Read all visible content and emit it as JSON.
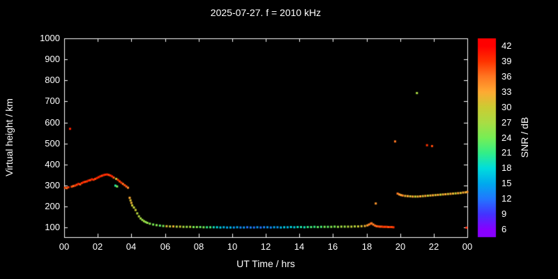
{
  "header": {
    "title": "2025-07-27. f = 2010 kHz"
  },
  "chart_data": {
    "type": "scatter",
    "title": "2025-07-27. f = 2010 kHz",
    "xlabel": "UT Time / hrs",
    "ylabel": "Virtual height / km",
    "colorbar_label": "SNR / dB",
    "background": "#000000",
    "axis_color": "#ffffff",
    "xlim": [
      0,
      24
    ],
    "ylim": [
      55,
      1000
    ],
    "grid": false,
    "x_ticks": [
      {
        "v": 0,
        "label": "00"
      },
      {
        "v": 2,
        "label": "02"
      },
      {
        "v": 4,
        "label": "04"
      },
      {
        "v": 6,
        "label": "06"
      },
      {
        "v": 8,
        "label": "08"
      },
      {
        "v": 10,
        "label": "10"
      },
      {
        "v": 12,
        "label": "12"
      },
      {
        "v": 14,
        "label": "14"
      },
      {
        "v": 16,
        "label": "16"
      },
      {
        "v": 18,
        "label": "18"
      },
      {
        "v": 20,
        "label": "20"
      },
      {
        "v": 22,
        "label": "22"
      },
      {
        "v": 24,
        "label": "00"
      }
    ],
    "y_ticks": [
      {
        "v": 100,
        "label": "100"
      },
      {
        "v": 200,
        "label": "200"
      },
      {
        "v": 300,
        "label": "300"
      },
      {
        "v": 400,
        "label": "400"
      },
      {
        "v": 500,
        "label": "500"
      },
      {
        "v": 600,
        "label": "600"
      },
      {
        "v": 700,
        "label": "700"
      },
      {
        "v": 800,
        "label": "800"
      },
      {
        "v": 900,
        "label": "900"
      },
      {
        "v": 1000,
        "label": "1000"
      }
    ],
    "colorbar": {
      "min": 4.5,
      "max": 43.5,
      "ticks": [
        6,
        9,
        12,
        15,
        18,
        21,
        24,
        27,
        30,
        33,
        36,
        39,
        42
      ],
      "stops": [
        [
          6,
          "#8800ff"
        ],
        [
          9,
          "#4433ff"
        ],
        [
          12,
          "#2277ff"
        ],
        [
          15,
          "#00aaee"
        ],
        [
          18,
          "#00dddd"
        ],
        [
          21,
          "#33ee88"
        ],
        [
          24,
          "#77ee55"
        ],
        [
          27,
          "#aadd44"
        ],
        [
          30,
          "#cccc33"
        ],
        [
          33,
          "#ffaa33"
        ],
        [
          36,
          "#ff7722"
        ],
        [
          39,
          "#ff3300"
        ],
        [
          42,
          "#ff0000"
        ]
      ]
    },
    "points": [
      [
        0.05,
        290,
        38
      ],
      [
        0.15,
        288,
        36
      ],
      [
        0.25,
        292,
        39
      ],
      [
        0.35,
        570,
        40
      ],
      [
        0.45,
        295,
        38
      ],
      [
        0.55,
        298,
        36
      ],
      [
        0.65,
        300,
        39
      ],
      [
        0.75,
        304,
        38
      ],
      [
        0.85,
        308,
        40
      ],
      [
        0.95,
        306,
        37
      ],
      [
        1.05,
        312,
        39
      ],
      [
        1.15,
        316,
        40
      ],
      [
        1.25,
        318,
        38
      ],
      [
        1.35,
        320,
        39
      ],
      [
        1.45,
        324,
        40
      ],
      [
        1.55,
        326,
        38
      ],
      [
        1.65,
        330,
        40
      ],
      [
        1.75,
        328,
        39
      ],
      [
        1.85,
        332,
        38
      ],
      [
        1.95,
        336,
        40
      ],
      [
        2.05,
        340,
        39
      ],
      [
        2.15,
        344,
        40
      ],
      [
        2.25,
        347,
        38
      ],
      [
        2.35,
        350,
        40
      ],
      [
        2.45,
        352,
        39
      ],
      [
        2.55,
        353,
        40
      ],
      [
        2.65,
        351,
        38
      ],
      [
        2.75,
        348,
        39
      ],
      [
        2.85,
        344,
        40
      ],
      [
        2.95,
        338,
        37
      ],
      [
        3.05,
        300,
        20
      ],
      [
        3.1,
        332,
        30
      ],
      [
        3.15,
        296,
        24
      ],
      [
        3.2,
        327,
        39
      ],
      [
        3.3,
        320,
        38
      ],
      [
        3.4,
        314,
        39
      ],
      [
        3.5,
        308,
        36
      ],
      [
        3.6,
        302,
        38
      ],
      [
        3.7,
        296,
        37
      ],
      [
        3.8,
        290,
        35
      ],
      [
        3.9,
        242,
        33
      ],
      [
        3.95,
        230,
        31
      ],
      [
        4.0,
        218,
        32
      ],
      [
        4.05,
        206,
        30
      ],
      [
        4.15,
        196,
        29
      ],
      [
        4.25,
        184,
        30
      ],
      [
        4.35,
        168,
        28
      ],
      [
        4.45,
        154,
        28
      ],
      [
        4.55,
        144,
        27
      ],
      [
        4.65,
        137,
        26
      ],
      [
        4.75,
        131,
        27
      ],
      [
        4.85,
        127,
        25
      ],
      [
        4.95,
        123,
        26
      ],
      [
        5.1,
        119,
        25
      ],
      [
        5.3,
        115,
        24
      ],
      [
        5.5,
        112,
        25
      ],
      [
        5.7,
        110,
        23
      ],
      [
        5.9,
        108,
        24
      ],
      [
        6.1,
        107,
        31
      ],
      [
        6.3,
        106,
        29
      ],
      [
        6.5,
        106,
        32
      ],
      [
        6.7,
        105,
        28
      ],
      [
        6.9,
        105,
        30
      ],
      [
        7.1,
        104,
        27
      ],
      [
        7.3,
        104,
        26
      ],
      [
        7.5,
        104,
        28
      ],
      [
        7.7,
        103,
        24
      ],
      [
        7.9,
        103,
        25
      ],
      [
        8.1,
        103,
        23
      ],
      [
        8.3,
        102,
        24
      ],
      [
        8.5,
        102,
        21
      ],
      [
        8.7,
        102,
        22
      ],
      [
        8.9,
        102,
        19
      ],
      [
        9.1,
        102,
        18
      ],
      [
        9.3,
        101,
        17
      ],
      [
        9.5,
        102,
        16
      ],
      [
        9.7,
        101,
        15
      ],
      [
        9.9,
        101,
        16
      ],
      [
        10.1,
        101,
        14
      ],
      [
        10.3,
        102,
        15
      ],
      [
        10.5,
        101,
        13
      ],
      [
        10.7,
        101,
        14
      ],
      [
        10.9,
        102,
        12
      ],
      [
        11.1,
        101,
        13
      ],
      [
        11.3,
        101,
        12
      ],
      [
        11.5,
        102,
        14
      ],
      [
        11.7,
        101,
        12
      ],
      [
        11.9,
        102,
        13
      ],
      [
        12.1,
        102,
        14
      ],
      [
        12.3,
        101,
        13
      ],
      [
        12.5,
        102,
        15
      ],
      [
        12.7,
        102,
        14
      ],
      [
        12.9,
        101,
        16
      ],
      [
        13.1,
        102,
        17
      ],
      [
        13.3,
        102,
        16
      ],
      [
        13.5,
        103,
        18
      ],
      [
        13.7,
        102,
        17
      ],
      [
        13.9,
        103,
        19
      ],
      [
        14.1,
        103,
        20
      ],
      [
        14.3,
        102,
        19
      ],
      [
        14.5,
        103,
        21
      ],
      [
        14.7,
        103,
        22
      ],
      [
        14.9,
        104,
        21
      ],
      [
        15.1,
        103,
        23
      ],
      [
        15.3,
        104,
        22
      ],
      [
        15.5,
        104,
        24
      ],
      [
        15.7,
        104,
        23
      ],
      [
        15.9,
        104,
        25
      ],
      [
        16.1,
        105,
        24
      ],
      [
        16.3,
        104,
        26
      ],
      [
        16.5,
        105,
        27
      ],
      [
        16.7,
        105,
        26
      ],
      [
        16.9,
        105,
        28
      ],
      [
        17.1,
        105,
        29
      ],
      [
        17.3,
        106,
        28
      ],
      [
        17.5,
        106,
        30
      ],
      [
        17.7,
        107,
        31
      ],
      [
        17.9,
        108,
        32
      ],
      [
        18.05,
        111,
        34
      ],
      [
        18.15,
        115,
        35
      ],
      [
        18.25,
        119,
        37
      ],
      [
        18.3,
        121,
        36
      ],
      [
        18.4,
        115,
        35
      ],
      [
        18.5,
        110,
        37
      ],
      [
        18.55,
        215,
        34
      ],
      [
        18.6,
        107,
        36
      ],
      [
        18.7,
        106,
        38
      ],
      [
        18.8,
        105,
        37
      ],
      [
        18.9,
        105,
        38
      ],
      [
        19.0,
        104,
        39
      ],
      [
        19.1,
        104,
        38
      ],
      [
        19.2,
        104,
        39
      ],
      [
        19.3,
        103,
        37
      ],
      [
        19.4,
        103,
        39
      ],
      [
        19.5,
        103,
        38
      ],
      [
        19.6,
        102,
        39
      ],
      [
        19.7,
        510,
        36
      ],
      [
        21.0,
        740,
        27
      ],
      [
        21.6,
        492,
        39
      ],
      [
        21.9,
        488,
        38
      ],
      [
        23.95,
        100,
        40
      ],
      [
        19.85,
        262,
        36
      ],
      [
        19.95,
        258,
        34
      ],
      [
        20.05,
        255,
        33
      ],
      [
        20.15,
        253,
        35
      ],
      [
        20.3,
        251,
        32
      ],
      [
        20.45,
        250,
        33
      ],
      [
        20.6,
        249,
        31
      ],
      [
        20.75,
        248,
        33
      ],
      [
        20.9,
        248,
        30
      ],
      [
        21.05,
        248,
        32
      ],
      [
        21.2,
        249,
        33
      ],
      [
        21.35,
        250,
        31
      ],
      [
        21.5,
        251,
        33
      ],
      [
        21.65,
        252,
        30
      ],
      [
        21.8,
        253,
        32
      ],
      [
        21.95,
        254,
        33
      ],
      [
        22.1,
        255,
        31
      ],
      [
        22.25,
        256,
        33
      ],
      [
        22.4,
        257,
        30
      ],
      [
        22.55,
        258,
        32
      ],
      [
        22.7,
        259,
        33
      ],
      [
        22.85,
        260,
        31
      ],
      [
        23.0,
        261,
        33
      ],
      [
        23.15,
        262,
        32
      ],
      [
        23.3,
        263,
        30
      ],
      [
        23.45,
        264,
        33
      ],
      [
        23.6,
        265,
        31
      ],
      [
        23.75,
        267,
        33
      ],
      [
        23.9,
        268,
        32
      ],
      [
        24.0,
        270,
        34
      ]
    ]
  }
}
